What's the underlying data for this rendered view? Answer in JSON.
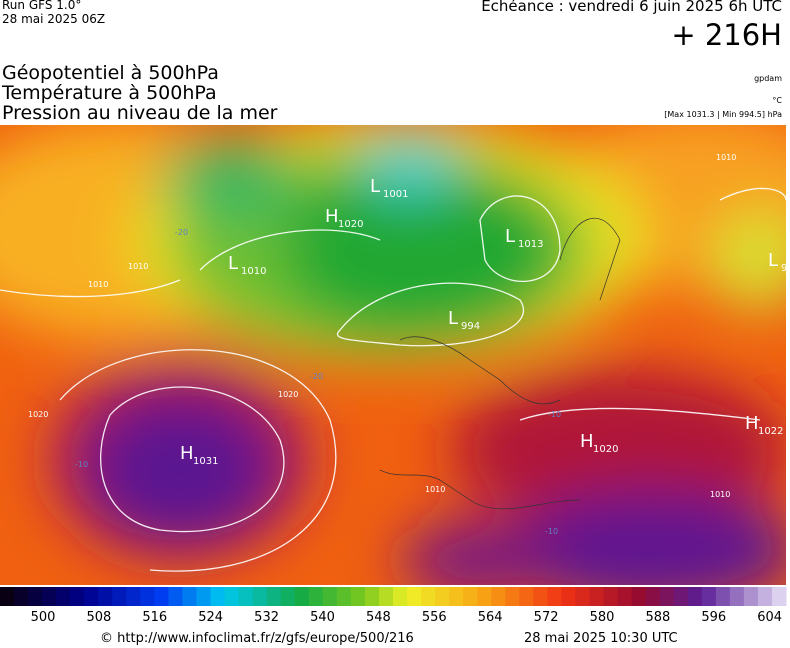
{
  "header": {
    "run": "Run GFS 1.0°",
    "date": "28 mai 2025 06Z",
    "echeance": "Echéance : vendredi 6 juin 2025 6h UTC",
    "lead": "+ 216H"
  },
  "layers": [
    "Géopotentiel à 500hPa",
    "Température à 500hPa",
    "Pression au niveau de la mer"
  ],
  "units": [
    "gpdam",
    "°C",
    "[Max 1031.3 | Min 994.5] hPa"
  ],
  "map": {
    "centers": [
      {
        "type": "H",
        "value": "1031"
      },
      {
        "type": "L",
        "value": "994"
      },
      {
        "type": "H",
        "value": "1020"
      },
      {
        "type": "H",
        "value": "1022"
      },
      {
        "type": "L",
        "value": "1001"
      },
      {
        "type": "H",
        "value": "1020"
      },
      {
        "type": "L",
        "value": "1010"
      },
      {
        "type": "L",
        "value": "1013"
      },
      {
        "type": "L",
        "value": "9"
      }
    ],
    "isoline_labels": [
      "1010",
      "1010",
      "1020",
      "1010",
      "1020",
      "1010",
      "1010",
      "-10",
      "-20",
      "-10",
      "-10",
      "-20"
    ]
  },
  "colorbar": {
    "labels": [
      "500",
      "508",
      "516",
      "524",
      "532",
      "540",
      "548",
      "556",
      "564",
      "572",
      "580",
      "588",
      "596",
      "604"
    ]
  },
  "footer": {
    "url": "© http://www.infoclimat.fr/z/gfs/europe/500/216",
    "time": "28 mai 2025 10:30 UTC"
  }
}
